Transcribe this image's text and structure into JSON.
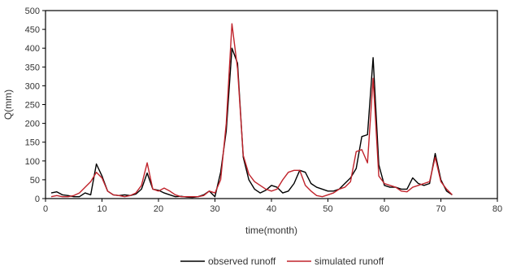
{
  "chart_data": {
    "type": "line",
    "title": "",
    "xlabel": "time(month)",
    "ylabel": "Q(mm)",
    "xlim": [
      0,
      80
    ],
    "ylim": [
      0,
      500
    ],
    "xticks": [
      0,
      10,
      20,
      30,
      40,
      50,
      60,
      70,
      80
    ],
    "yticks": [
      0,
      50,
      100,
      150,
      200,
      250,
      300,
      350,
      400,
      450,
      500
    ],
    "grid": false,
    "legend_position": "bottom",
    "x": [
      1,
      2,
      3,
      4,
      5,
      6,
      7,
      8,
      9,
      10,
      11,
      12,
      13,
      14,
      15,
      16,
      17,
      18,
      19,
      20,
      21,
      22,
      23,
      24,
      25,
      26,
      27,
      28,
      29,
      30,
      31,
      32,
      33,
      34,
      35,
      36,
      37,
      38,
      39,
      40,
      41,
      42,
      43,
      44,
      45,
      46,
      47,
      48,
      49,
      50,
      51,
      52,
      53,
      54,
      55,
      56,
      57,
      58,
      59,
      60,
      61,
      62,
      63,
      64,
      65,
      66,
      67,
      68,
      69,
      70,
      71,
      72
    ],
    "series": [
      {
        "name": "observed runoff",
        "color": "#000000",
        "values": [
          15,
          18,
          10,
          8,
          5,
          5,
          15,
          10,
          92,
          60,
          20,
          10,
          8,
          10,
          8,
          12,
          25,
          68,
          25,
          22,
          15,
          10,
          5,
          6,
          4,
          3,
          5,
          10,
          20,
          5,
          70,
          180,
          400,
          360,
          110,
          50,
          25,
          15,
          22,
          35,
          30,
          15,
          20,
          40,
          75,
          70,
          40,
          30,
          25,
          20,
          20,
          25,
          40,
          55,
          80,
          165,
          170,
          375,
          90,
          35,
          30,
          30,
          25,
          25,
          55,
          40,
          35,
          40,
          120,
          50,
          20,
          10
        ]
      },
      {
        "name": "simulated runoff",
        "color": "#C0232B",
        "values": [
          5,
          8,
          5,
          5,
          8,
          15,
          30,
          45,
          70,
          55,
          20,
          10,
          8,
          5,
          8,
          15,
          35,
          95,
          25,
          20,
          28,
          20,
          10,
          5,
          5,
          5,
          5,
          8,
          20,
          15,
          50,
          200,
          465,
          345,
          115,
          65,
          45,
          35,
          25,
          20,
          25,
          50,
          70,
          75,
          75,
          35,
          20,
          8,
          5,
          10,
          15,
          25,
          30,
          45,
          125,
          130,
          95,
          320,
          60,
          40,
          35,
          30,
          20,
          18,
          30,
          35,
          40,
          45,
          110,
          45,
          25,
          10
        ]
      }
    ]
  }
}
